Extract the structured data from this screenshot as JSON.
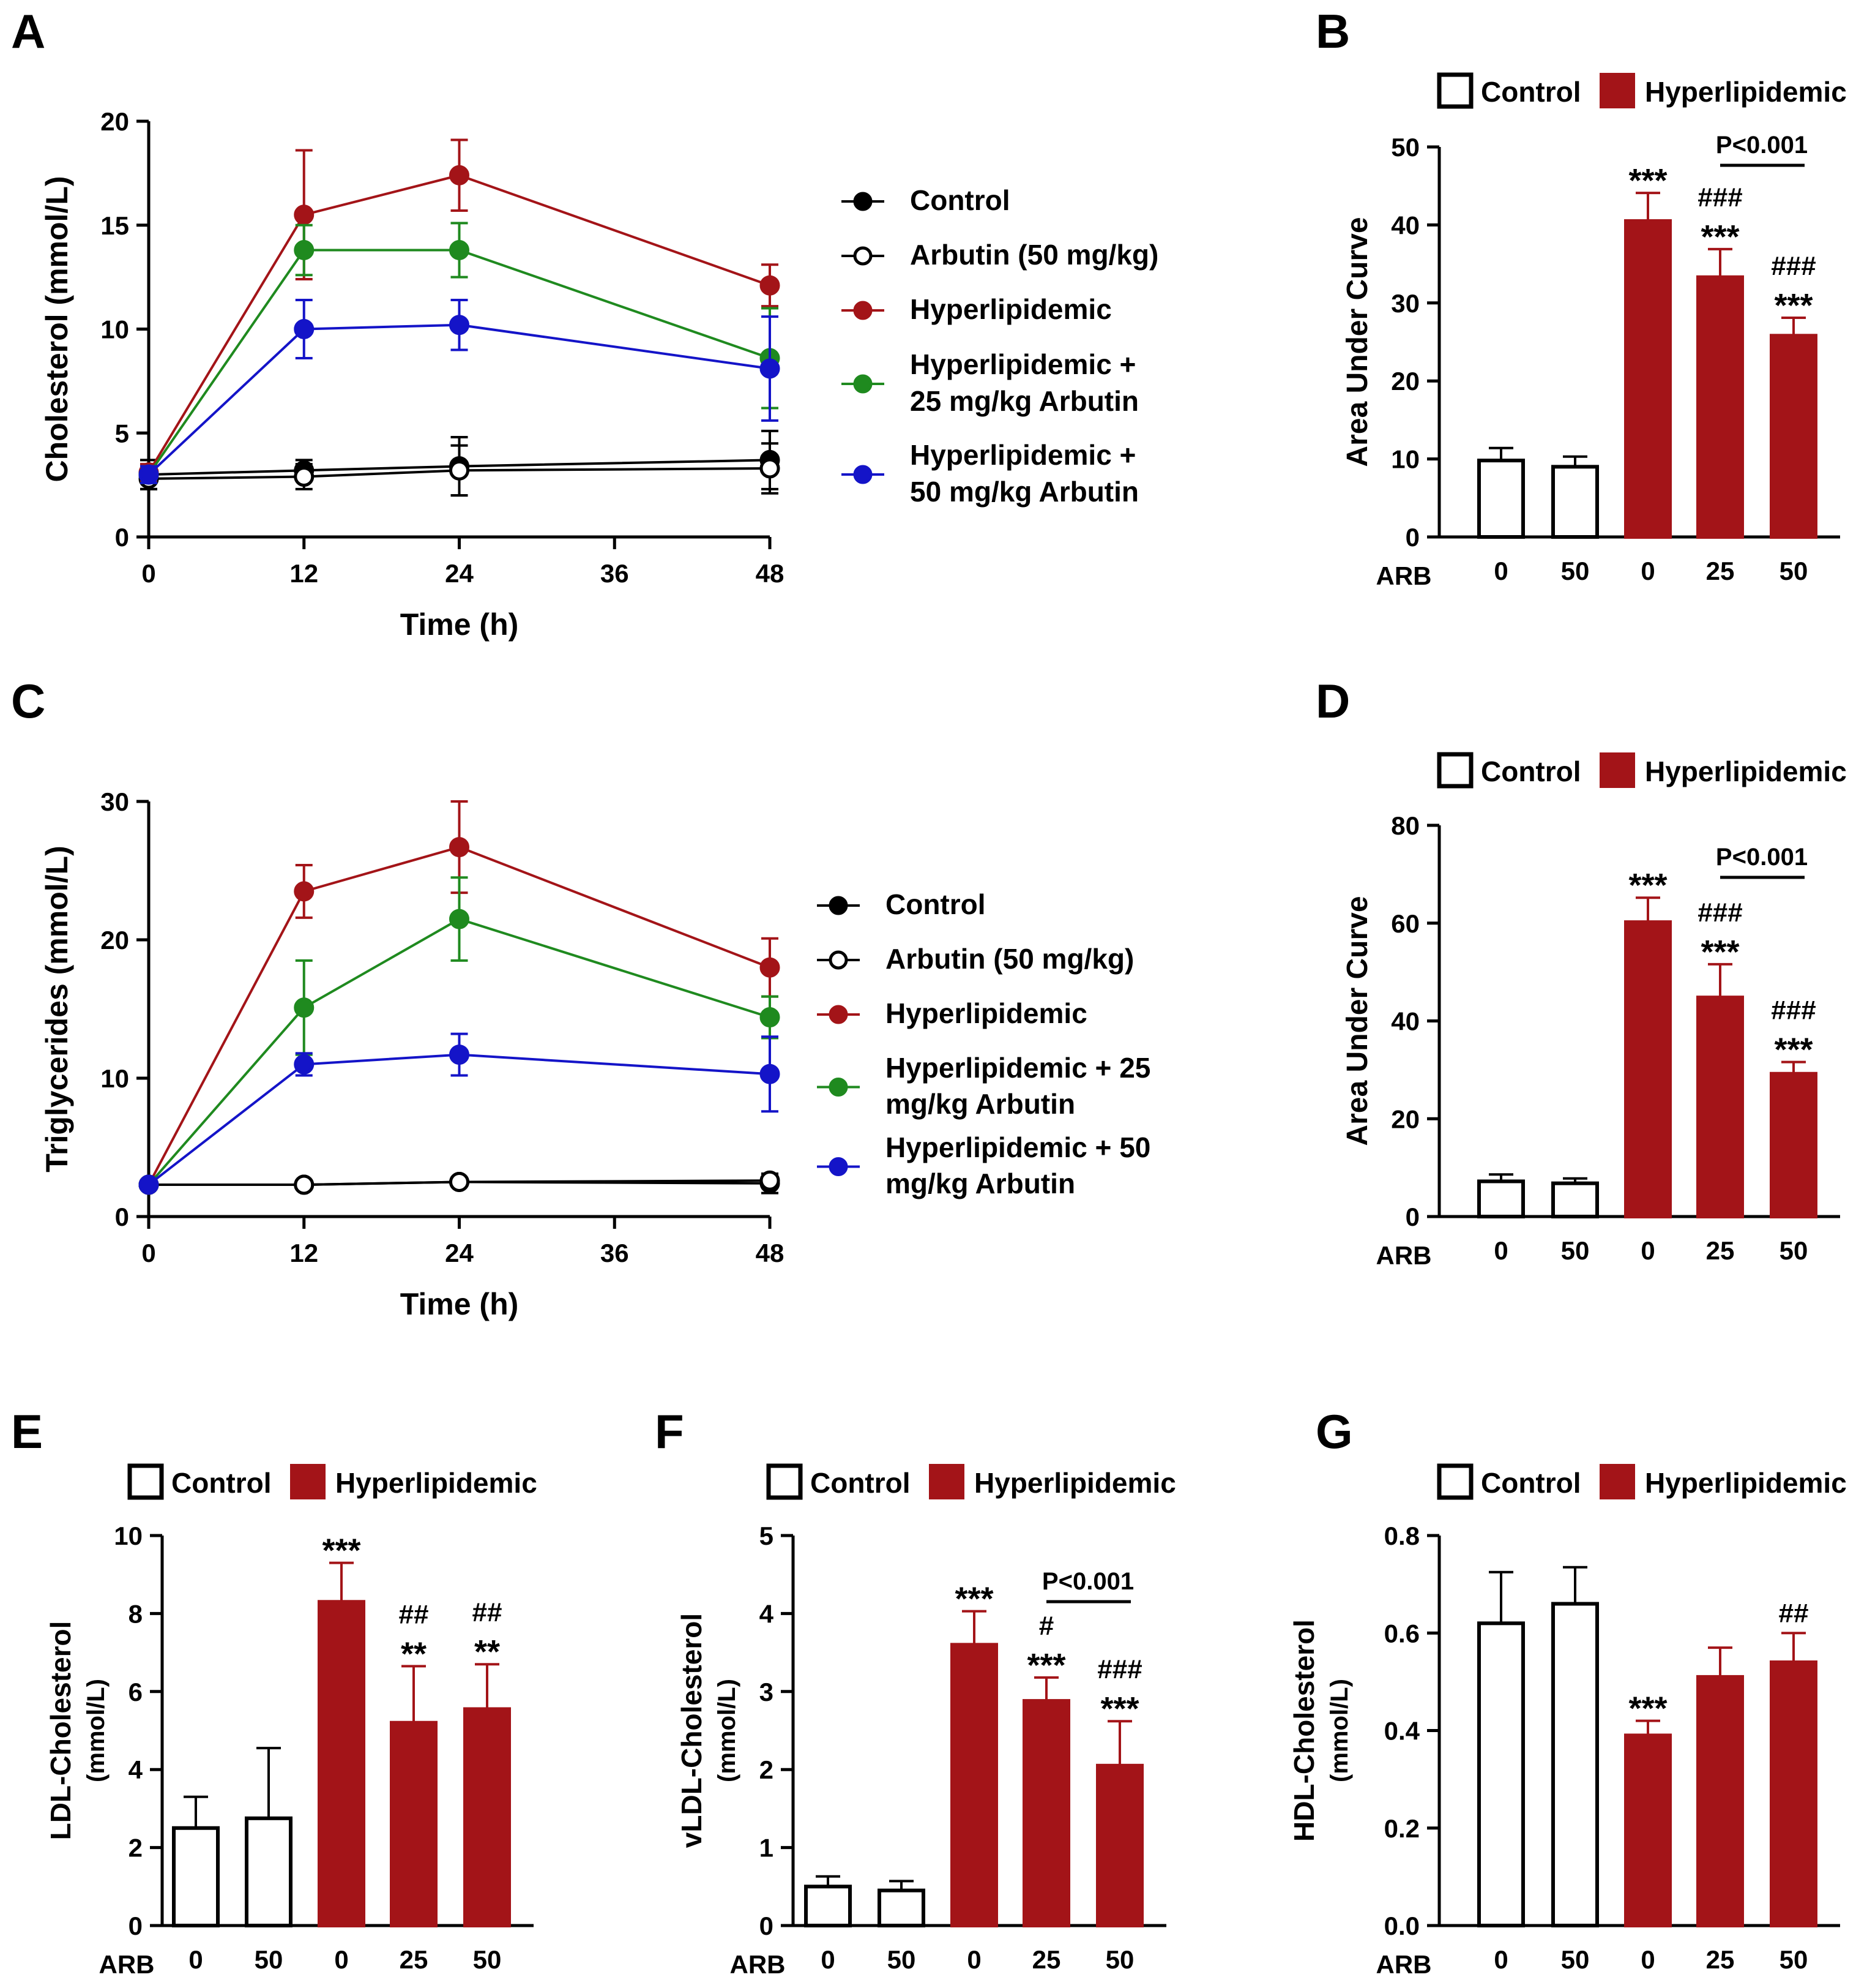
{
  "colors": {
    "control": "#000000",
    "arbutin": "#000000",
    "hyper": "#a31418",
    "hyper25": "#1f8a1f",
    "hyper50": "#1414c8",
    "bar_red": "#a31418",
    "bar_white": "#ffffff"
  },
  "chart_data": [
    {
      "panel": "A",
      "type": "line",
      "ylabel": "Cholesterol (mmol/L)",
      "xlabel": "Time (h)",
      "ylim": [
        0,
        20
      ],
      "yticks": [
        "0",
        "5",
        "10",
        "15",
        "20"
      ],
      "xlim": [
        0,
        48
      ],
      "xticks": [
        "0",
        "12",
        "24",
        "36",
        "48"
      ],
      "x": [
        0,
        12,
        24,
        48
      ],
      "series": [
        {
          "name": "Control",
          "color": "control",
          "marker": "filled",
          "values": [
            3.0,
            3.2,
            3.4,
            3.7
          ],
          "err": [
            0.7,
            0.5,
            1.4,
            1.4
          ]
        },
        {
          "name": "Arbutin (50 mg/kg)",
          "color": "arbutin",
          "marker": "open",
          "values": [
            2.8,
            2.9,
            3.2,
            3.3
          ],
          "err": [
            0.5,
            0.6,
            1.2,
            1.2
          ]
        },
        {
          "name": "Hyperlipidemic",
          "color": "hyper",
          "marker": "filled",
          "values": [
            3.1,
            15.5,
            17.4,
            12.1
          ],
          "err": [
            0.4,
            3.1,
            1.7,
            1.0
          ]
        },
        {
          "name": "Hyperlipidemic + 25 mg/kg Arbutin",
          "color": "hyper25",
          "marker": "filled",
          "values": [
            3.0,
            13.8,
            13.8,
            8.6
          ],
          "err": [
            0.4,
            1.2,
            1.3,
            2.4
          ]
        },
        {
          "name": "Hyperlipidemic + 50 mg/kg Arbutin",
          "color": "hyper50",
          "marker": "filled",
          "values": [
            3.0,
            10.0,
            10.2,
            8.1
          ],
          "err": [
            0.4,
            1.4,
            1.2,
            2.5
          ]
        }
      ],
      "legend": [
        {
          "lines": [
            "Control"
          ],
          "color": "control",
          "marker": "filled"
        },
        {
          "lines": [
            "Arbutin (50 mg/kg)"
          ],
          "color": "arbutin",
          "marker": "open"
        },
        {
          "lines": [
            "Hyperlipidemic"
          ],
          "color": "hyper",
          "marker": "filled"
        },
        {
          "lines": [
            "Hyperlipidemic +",
            "25 mg/kg Arbutin"
          ],
          "color": "hyper25",
          "marker": "filled"
        },
        {
          "lines": [
            "Hyperlipidemic +",
            "50 mg/kg Arbutin"
          ],
          "color": "hyper50",
          "marker": "filled"
        }
      ]
    },
    {
      "panel": "B",
      "type": "bar",
      "ylabel": "Area Under Curve",
      "ylim": [
        0,
        50
      ],
      "yticks": [
        "0",
        "10",
        "20",
        "30",
        "40",
        "50"
      ],
      "xgroup_label": "ARB",
      "categories": [
        "0",
        "50",
        "0",
        "25",
        "50"
      ],
      "groups": [
        "control",
        "control",
        "hyper",
        "hyper",
        "hyper"
      ],
      "values": [
        9.8,
        9.0,
        40.5,
        33.3,
        25.8
      ],
      "err": [
        1.6,
        1.3,
        3.6,
        3.6,
        2.3
      ],
      "annotations": [
        [],
        [],
        [
          "***"
        ],
        [
          "###",
          "***"
        ],
        [
          "###",
          "***"
        ]
      ],
      "comparison": {
        "label": "P<0.001",
        "from": 3,
        "to": 4
      },
      "legend": [
        "Control",
        "Hyperlipidemic"
      ]
    },
    {
      "panel": "C",
      "type": "line",
      "ylabel": "Triglycerides (mmol/L)",
      "xlabel": "Time (h)",
      "ylim": [
        0,
        30
      ],
      "yticks": [
        "0",
        "10",
        "20",
        "30"
      ],
      "xlim": [
        0,
        48
      ],
      "xticks": [
        "0",
        "12",
        "24",
        "36",
        "48"
      ],
      "x": [
        0,
        12,
        24,
        48
      ],
      "series": [
        {
          "name": "Control",
          "color": "control",
          "marker": "filled",
          "values": [
            2.3,
            2.3,
            2.5,
            2.4
          ],
          "err": [
            0.3,
            0.3,
            0.3,
            0.7
          ]
        },
        {
          "name": "Arbutin (50 mg/kg)",
          "color": "arbutin",
          "marker": "open",
          "values": [
            2.3,
            2.3,
            2.5,
            2.6
          ],
          "err": [
            0.3,
            0.3,
            0.3,
            0.5
          ]
        },
        {
          "name": "Hyperlipidemic",
          "color": "hyper",
          "marker": "filled",
          "values": [
            2.3,
            23.5,
            26.7,
            18.0
          ],
          "err": [
            0.3,
            1.9,
            3.3,
            2.1
          ]
        },
        {
          "name": "Hyperlipidemic + 25 mg/kg Arbutin",
          "color": "hyper25",
          "marker": "filled",
          "values": [
            2.3,
            15.1,
            21.5,
            14.4
          ],
          "err": [
            0.3,
            3.4,
            3.0,
            1.5
          ]
        },
        {
          "name": "Hyperlipidemic + 50 mg/kg Arbutin",
          "color": "hyper50",
          "marker": "filled",
          "values": [
            2.3,
            11.0,
            11.7,
            10.3
          ],
          "err": [
            0.3,
            0.8,
            1.5,
            2.7
          ]
        }
      ],
      "legend": [
        {
          "lines": [
            "Control"
          ],
          "color": "control",
          "marker": "filled"
        },
        {
          "lines": [
            "Arbutin (50 mg/kg)"
          ],
          "color": "arbutin",
          "marker": "open"
        },
        {
          "lines": [
            "Hyperlipidemic"
          ],
          "color": "hyper",
          "marker": "filled"
        },
        {
          "lines": [
            "Hyperlipidemic + 25",
            "mg/kg Arbutin"
          ],
          "color": "hyper25",
          "marker": "filled"
        },
        {
          "lines": [
            "Hyperlipidemic + 50",
            "mg/kg Arbutin"
          ],
          "color": "hyper50",
          "marker": "filled"
        }
      ]
    },
    {
      "panel": "D",
      "type": "bar",
      "ylabel": "Area Under Curve",
      "ylim": [
        0,
        80
      ],
      "yticks": [
        "0",
        "20",
        "40",
        "60",
        "80"
      ],
      "xgroup_label": "ARB",
      "categories": [
        "0",
        "50",
        "0",
        "25",
        "50"
      ],
      "groups": [
        "control",
        "control",
        "hyper",
        "hyper",
        "hyper"
      ],
      "values": [
        7.2,
        6.8,
        60.2,
        44.8,
        29.2
      ],
      "err": [
        1.4,
        1.0,
        5.0,
        6.8,
        2.4
      ],
      "annotations": [
        [],
        [],
        [
          "***"
        ],
        [
          "###",
          "***"
        ],
        [
          "###",
          "***"
        ]
      ],
      "comparison": {
        "label": "P<0.001",
        "from": 3,
        "to": 4
      },
      "legend": [
        "Control",
        "Hyperlipidemic"
      ]
    },
    {
      "panel": "E",
      "type": "bar",
      "ylabel": "LDL-Cholesterol",
      "ylabel2": "(mmol/L)",
      "ylim": [
        0,
        10
      ],
      "yticks": [
        "0",
        "2",
        "4",
        "6",
        "8",
        "10"
      ],
      "xgroup_label": "ARB",
      "categories": [
        "0",
        "50",
        "0",
        "25",
        "50"
      ],
      "groups": [
        "control",
        "control",
        "hyper",
        "hyper",
        "hyper"
      ],
      "values": [
        2.5,
        2.75,
        8.3,
        5.2,
        5.55
      ],
      "err": [
        0.8,
        1.8,
        1.0,
        1.45,
        1.15
      ],
      "annotations": [
        [],
        [],
        [
          "***"
        ],
        [
          "##",
          "**"
        ],
        [
          "##",
          "**"
        ]
      ],
      "legend": [
        "Control",
        "Hyperlipidemic"
      ]
    },
    {
      "panel": "F",
      "type": "bar",
      "ylabel": "vLDL-Cholesterol",
      "ylabel2": "(mmol/L)",
      "ylim": [
        0,
        5
      ],
      "yticks": [
        "0",
        "1",
        "2",
        "3",
        "4",
        "5"
      ],
      "xgroup_label": "ARB",
      "categories": [
        "0",
        "50",
        "0",
        "25",
        "50"
      ],
      "groups": [
        "control",
        "control",
        "hyper",
        "hyper",
        "hyper"
      ],
      "values": [
        0.5,
        0.45,
        3.6,
        2.88,
        2.05
      ],
      "err": [
        0.13,
        0.12,
        0.43,
        0.3,
        0.57
      ],
      "annotations": [
        [],
        [],
        [
          "***"
        ],
        [
          "#",
          "***"
        ],
        [
          "###",
          "***"
        ]
      ],
      "comparison": {
        "label": "P<0.001",
        "from": 3,
        "to": 4
      },
      "legend": [
        "Control",
        "Hyperlipidemic"
      ]
    },
    {
      "panel": "G",
      "type": "bar",
      "ylabel": "HDL-Cholesterol",
      "ylabel2": "(mmol/L)",
      "ylim": [
        0,
        0.8
      ],
      "yticks": [
        "0.0",
        "0.2",
        "0.4",
        "0.6",
        "0.8"
      ],
      "xgroup_label": "ARB",
      "categories": [
        "0",
        "50",
        "0",
        "25",
        "50"
      ],
      "groups": [
        "control",
        "control",
        "hyper",
        "hyper",
        "hyper"
      ],
      "values": [
        0.62,
        0.66,
        0.39,
        0.51,
        0.54
      ],
      "err": [
        0.105,
        0.075,
        0.03,
        0.06,
        0.06
      ],
      "annotations": [
        [],
        [],
        [
          "***"
        ],
        [],
        [
          "##"
        ]
      ],
      "legend": [
        "Control",
        "Hyperlipidemic"
      ]
    }
  ]
}
